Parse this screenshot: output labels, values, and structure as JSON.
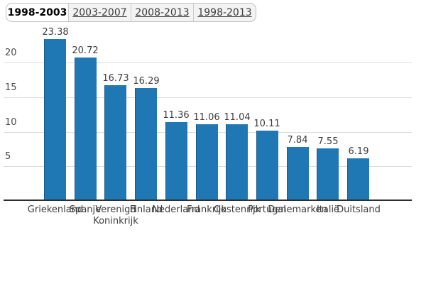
{
  "tabs": [
    {
      "label": "1998-2003",
      "active": true
    },
    {
      "label": "2003-2007",
      "active": false
    },
    {
      "label": "2008-2013",
      "active": false
    },
    {
      "label": "1998-2013",
      "active": false
    }
  ],
  "chart_data": {
    "type": "bar",
    "title": "",
    "xlabel": "",
    "ylabel": "",
    "categories": [
      "Griekenland",
      "Spanje",
      "Verenigd Koninkrijk",
      "Finland",
      "Nederland",
      "Frankrijk",
      "Oostenrijk",
      "Portugal",
      "Denemarken",
      "Italië",
      "Duitsland"
    ],
    "values": [
      23.38,
      20.72,
      16.73,
      16.29,
      11.36,
      11.06,
      11.04,
      10.11,
      7.84,
      7.55,
      6.19
    ],
    "yticks": [
      5,
      10,
      15,
      20
    ],
    "ylim": [
      0,
      23.5
    ],
    "grid": true,
    "legend_position": "none",
    "bar_color": "#1f77b4",
    "data_labels_shown": true
  }
}
